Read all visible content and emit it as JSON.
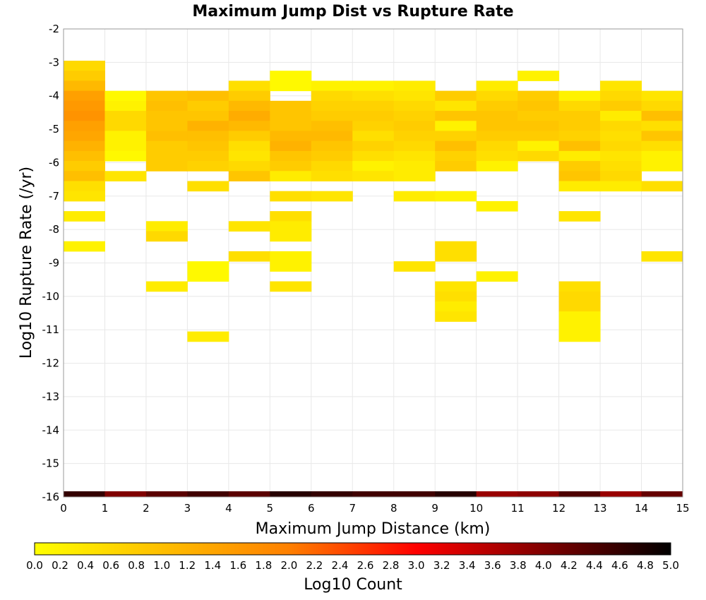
{
  "chart_data": {
    "type": "heatmap",
    "title": "Maximum Jump Dist vs Rupture Rate",
    "xlabel": "Maximum Jump Distance (km)",
    "ylabel": "Log10 Rupture Rate (/yr)",
    "xlim": [
      0,
      15
    ],
    "ylim": [
      -16,
      -2
    ],
    "x_ticks": [
      "0",
      "1",
      "2",
      "3",
      "4",
      "5",
      "6",
      "7",
      "8",
      "9",
      "10",
      "11",
      "12",
      "13",
      "14",
      "15"
    ],
    "y_ticks": [
      "-2",
      "-3",
      "-4",
      "-5",
      "-6",
      "-7",
      "-8",
      "-9",
      "-10",
      "-11",
      "-12",
      "-13",
      "-14",
      "-15",
      "-16"
    ],
    "grid": true,
    "colorbar": {
      "label": "Log10 Count",
      "range": [
        0,
        5
      ],
      "ticks": [
        "0.0",
        "0.2",
        "0.4",
        "0.6",
        "0.8",
        "1.0",
        "1.2",
        "1.4",
        "1.6",
        "1.8",
        "2.0",
        "2.2",
        "2.4",
        "2.6",
        "2.8",
        "3.0",
        "3.2",
        "3.4",
        "3.6",
        "3.8",
        "4.0",
        "4.2",
        "4.4",
        "4.6",
        "4.8",
        "5.0"
      ],
      "colors": [
        "#ffff00",
        "#ffbf00",
        "#ff8000",
        "#ff0000",
        "#800000",
        "#000000"
      ]
    },
    "bin_width_y": 0.3,
    "cells": [
      [
        0,
        -3.1,
        0.6
      ],
      [
        0,
        -3.4,
        0.8
      ],
      [
        0,
        -3.7,
        1.1
      ],
      [
        0,
        -4.0,
        1.5
      ],
      [
        0,
        -4.3,
        1.6
      ],
      [
        0,
        -4.6,
        1.7
      ],
      [
        0,
        -4.9,
        1.5
      ],
      [
        0,
        -5.2,
        1.4
      ],
      [
        0,
        -5.5,
        1.2
      ],
      [
        0,
        -5.8,
        1.0
      ],
      [
        0,
        -6.1,
        0.8
      ],
      [
        0,
        -6.4,
        1.0
      ],
      [
        0,
        -6.7,
        0.5
      ],
      [
        0,
        -7.0,
        0.4
      ],
      [
        0,
        -7.6,
        0.3
      ],
      [
        0,
        -8.5,
        0.2
      ],
      [
        1,
        -4.0,
        0.1
      ],
      [
        1,
        -4.3,
        0.2
      ],
      [
        1,
        -4.6,
        0.6
      ],
      [
        1,
        -4.9,
        0.6
      ],
      [
        1,
        -5.2,
        0.2
      ],
      [
        1,
        -5.5,
        0.2
      ],
      [
        1,
        -5.8,
        0.1
      ],
      [
        1,
        -6.4,
        0.4
      ],
      [
        2,
        -4.0,
        0.9
      ],
      [
        2,
        -4.3,
        1.0
      ],
      [
        2,
        -4.6,
        0.9
      ],
      [
        2,
        -4.9,
        0.9
      ],
      [
        2,
        -5.2,
        1.0
      ],
      [
        2,
        -5.5,
        0.8
      ],
      [
        2,
        -5.8,
        0.8
      ],
      [
        2,
        -6.1,
        0.8
      ],
      [
        2,
        -7.9,
        0.3
      ],
      [
        2,
        -8.2,
        0.6
      ],
      [
        2,
        -9.7,
        0.3
      ],
      [
        3,
        -4.0,
        1.0
      ],
      [
        3,
        -4.3,
        0.8
      ],
      [
        3,
        -4.6,
        0.9
      ],
      [
        3,
        -4.9,
        1.2
      ],
      [
        3,
        -5.2,
        1.0
      ],
      [
        3,
        -5.5,
        0.9
      ],
      [
        3,
        -5.8,
        0.8
      ],
      [
        3,
        -6.1,
        0.7
      ],
      [
        3,
        -6.7,
        0.5
      ],
      [
        3,
        -9.1,
        0.1
      ],
      [
        3,
        -9.4,
        0.1
      ],
      [
        3,
        -11.2,
        0.3
      ],
      [
        4,
        -3.7,
        0.5
      ],
      [
        4,
        -4.0,
        0.8
      ],
      [
        4,
        -4.3,
        1.1
      ],
      [
        4,
        -4.6,
        1.3
      ],
      [
        4,
        -4.9,
        1.1
      ],
      [
        4,
        -5.2,
        0.8
      ],
      [
        4,
        -5.5,
        0.5
      ],
      [
        4,
        -5.8,
        0.4
      ],
      [
        4,
        -6.1,
        0.6
      ],
      [
        4,
        -6.4,
        0.9
      ],
      [
        4,
        -7.9,
        0.4
      ],
      [
        4,
        -8.8,
        0.5
      ],
      [
        5,
        -3.4,
        0.1
      ],
      [
        5,
        -3.7,
        0.1
      ],
      [
        5,
        -4.3,
        0.9
      ],
      [
        5,
        -4.6,
        0.9
      ],
      [
        5,
        -4.9,
        0.9
      ],
      [
        5,
        -5.2,
        1.1
      ],
      [
        5,
        -5.5,
        1.2
      ],
      [
        5,
        -5.8,
        0.9
      ],
      [
        5,
        -6.1,
        0.8
      ],
      [
        5,
        -6.4,
        0.3
      ],
      [
        5,
        -7.0,
        0.5
      ],
      [
        5,
        -7.6,
        0.5
      ],
      [
        5,
        -7.9,
        0.3
      ],
      [
        5,
        -8.2,
        0.3
      ],
      [
        5,
        -8.8,
        0.2
      ],
      [
        5,
        -9.1,
        0.2
      ],
      [
        5,
        -9.7,
        0.4
      ],
      [
        6,
        -3.7,
        0.2
      ],
      [
        6,
        -4.0,
        0.6
      ],
      [
        6,
        -4.3,
        0.7
      ],
      [
        6,
        -4.6,
        0.8
      ],
      [
        6,
        -4.9,
        1.0
      ],
      [
        6,
        -5.2,
        1.1
      ],
      [
        6,
        -5.5,
        0.9
      ],
      [
        6,
        -5.8,
        0.8
      ],
      [
        6,
        -6.1,
        0.6
      ],
      [
        6,
        -6.4,
        0.5
      ],
      [
        6,
        -7.0,
        0.4
      ],
      [
        7,
        -3.7,
        0.2
      ],
      [
        7,
        -4.0,
        0.5
      ],
      [
        7,
        -4.3,
        0.7
      ],
      [
        7,
        -4.6,
        0.8
      ],
      [
        7,
        -4.9,
        0.7
      ],
      [
        7,
        -5.2,
        0.5
      ],
      [
        7,
        -5.5,
        0.7
      ],
      [
        7,
        -5.8,
        0.5
      ],
      [
        7,
        -6.1,
        0.2
      ],
      [
        7,
        -6.4,
        0.4
      ],
      [
        8,
        -3.7,
        0.3
      ],
      [
        8,
        -4.0,
        0.4
      ],
      [
        8,
        -4.3,
        0.6
      ],
      [
        8,
        -4.6,
        0.7
      ],
      [
        8,
        -4.9,
        0.8
      ],
      [
        8,
        -5.2,
        0.7
      ],
      [
        8,
        -5.5,
        0.6
      ],
      [
        8,
        -5.8,
        0.4
      ],
      [
        8,
        -6.1,
        0.3
      ],
      [
        8,
        -6.4,
        0.3
      ],
      [
        8,
        -7.0,
        0.3
      ],
      [
        8,
        -9.1,
        0.4
      ],
      [
        9,
        -4.0,
        0.8
      ],
      [
        9,
        -4.3,
        0.4
      ],
      [
        9,
        -4.6,
        0.9
      ],
      [
        9,
        -4.9,
        0.2
      ],
      [
        9,
        -5.2,
        0.7
      ],
      [
        9,
        -5.5,
        1.0
      ],
      [
        9,
        -5.8,
        0.7
      ],
      [
        9,
        -6.1,
        0.8
      ],
      [
        9,
        -7.0,
        0.2
      ],
      [
        9,
        -8.5,
        0.5
      ],
      [
        9,
        -8.8,
        0.5
      ],
      [
        9,
        -9.7,
        0.4
      ],
      [
        9,
        -10.0,
        0.5
      ],
      [
        9,
        -10.3,
        0.3
      ],
      [
        9,
        -10.6,
        0.4
      ],
      [
        10,
        -3.7,
        0.3
      ],
      [
        10,
        -4.0,
        0.6
      ],
      [
        10,
        -4.3,
        0.8
      ],
      [
        10,
        -4.6,
        0.9
      ],
      [
        10,
        -4.9,
        0.9
      ],
      [
        10,
        -5.2,
        0.8
      ],
      [
        10,
        -5.5,
        0.6
      ],
      [
        10,
        -5.8,
        0.5
      ],
      [
        10,
        -6.1,
        0.2
      ],
      [
        10,
        -7.3,
        0.2
      ],
      [
        10,
        -9.4,
        0.2
      ],
      [
        11,
        -3.4,
        0.2
      ],
      [
        11,
        -4.0,
        0.8
      ],
      [
        11,
        -4.3,
        0.9
      ],
      [
        11,
        -4.6,
        0.8
      ],
      [
        11,
        -4.9,
        0.9
      ],
      [
        11,
        -5.2,
        0.8
      ],
      [
        11,
        -5.5,
        0.2
      ],
      [
        11,
        -5.8,
        0.6
      ],
      [
        12,
        -4.0,
        0.2
      ],
      [
        12,
        -4.3,
        0.6
      ],
      [
        12,
        -4.6,
        0.8
      ],
      [
        12,
        -4.9,
        0.8
      ],
      [
        12,
        -5.2,
        0.7
      ],
      [
        12,
        -5.5,
        1.0
      ],
      [
        12,
        -5.8,
        0.3
      ],
      [
        12,
        -6.1,
        0.8
      ],
      [
        12,
        -6.4,
        0.9
      ],
      [
        12,
        -6.7,
        0.3
      ],
      [
        12,
        -7.6,
        0.4
      ],
      [
        12,
        -9.7,
        0.5
      ],
      [
        12,
        -10.0,
        0.6
      ],
      [
        12,
        -10.3,
        0.6
      ],
      [
        12,
        -10.6,
        0.2
      ],
      [
        12,
        -10.9,
        0.2
      ],
      [
        12,
        -11.2,
        0.2
      ],
      [
        13,
        -3.7,
        0.4
      ],
      [
        13,
        -4.0,
        0.6
      ],
      [
        13,
        -4.3,
        0.8
      ],
      [
        13,
        -4.6,
        0.3
      ],
      [
        13,
        -4.9,
        0.6
      ],
      [
        13,
        -5.2,
        0.5
      ],
      [
        13,
        -5.5,
        0.6
      ],
      [
        13,
        -5.8,
        0.4
      ],
      [
        13,
        -6.1,
        0.5
      ],
      [
        13,
        -6.4,
        0.6
      ],
      [
        13,
        -6.7,
        0.3
      ],
      [
        14,
        -4.0,
        0.4
      ],
      [
        14,
        -4.3,
        0.6
      ],
      [
        14,
        -4.6,
        1.0
      ],
      [
        14,
        -4.9,
        0.5
      ],
      [
        14,
        -5.2,
        0.9
      ],
      [
        14,
        -5.5,
        0.5
      ],
      [
        14,
        -5.8,
        0.2
      ],
      [
        14,
        -6.1,
        0.2
      ],
      [
        14,
        -6.7,
        0.5
      ],
      [
        14,
        -8.8,
        0.4
      ]
    ],
    "bottom_row": {
      "y": -16,
      "values": [
        4.6,
        4.0,
        4.3,
        4.5,
        4.3,
        4.7,
        4.6,
        4.5,
        4.5,
        4.7,
        3.8,
        3.9,
        4.4,
        3.8,
        4.2
      ]
    }
  }
}
